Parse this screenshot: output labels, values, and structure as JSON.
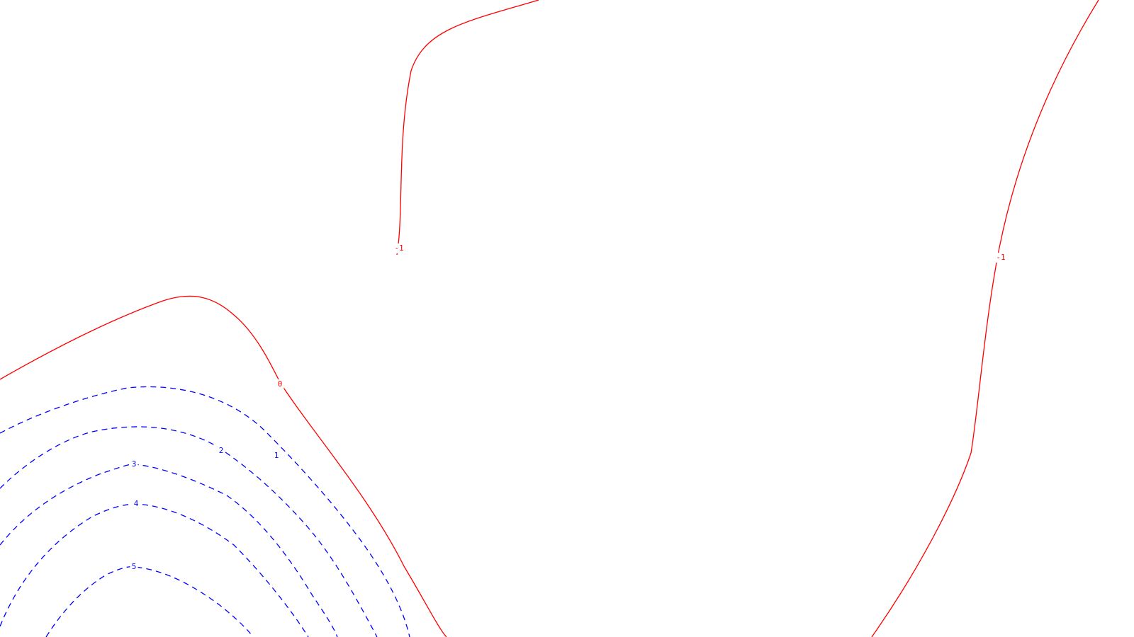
{
  "chart_data": {
    "type": "contour",
    "title": "",
    "xlabel": "",
    "ylabel": "",
    "grid": false,
    "colors": {
      "positive": "#0000ff",
      "non_positive": "#ff0000"
    },
    "contours": [
      {
        "level": -1,
        "label": "-1",
        "color": "#ff0000",
        "dash": "solid"
      },
      {
        "level": -1,
        "label": "-1",
        "color": "#ff0000",
        "dash": "solid"
      },
      {
        "level": 0,
        "label": "0",
        "color": "#ff0000",
        "dash": "solid"
      },
      {
        "level": 1,
        "label": "1",
        "color": "#0000ff",
        "dash": "dashed"
      },
      {
        "level": 2,
        "label": "2",
        "color": "#0000ff",
        "dash": "dashed"
      },
      {
        "level": 3,
        "label": "3",
        "color": "#0000ff",
        "dash": "dashed"
      },
      {
        "level": 4,
        "label": "4",
        "color": "#0000ff",
        "dash": "dashed"
      },
      {
        "level": 5,
        "label": "5",
        "color": "#0000ff",
        "dash": "dashed"
      }
    ]
  }
}
